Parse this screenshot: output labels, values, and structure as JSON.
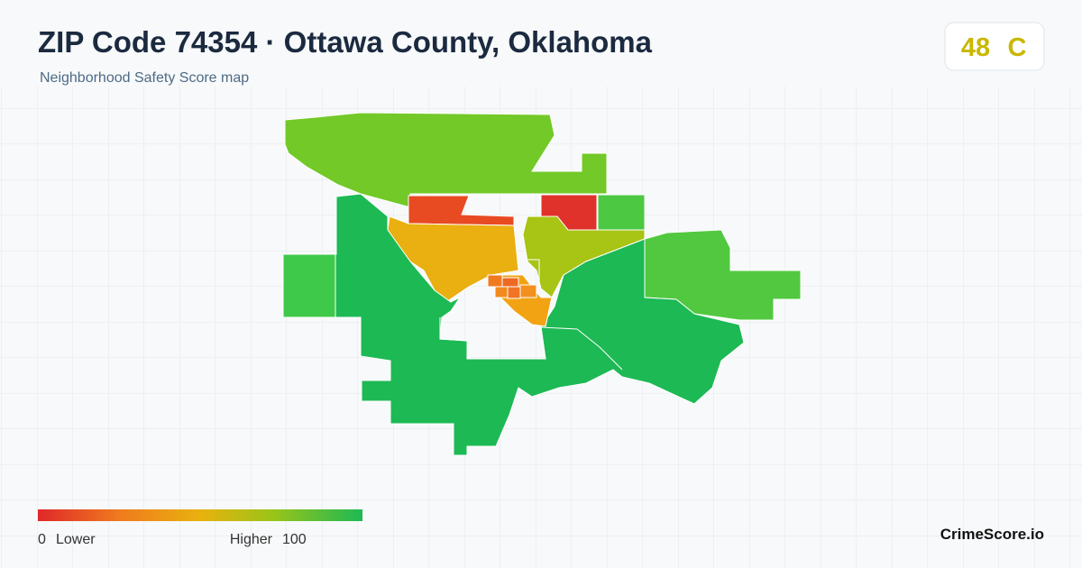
{
  "header": {
    "title": "ZIP Code 74354 · Ottawa County, Oklahoma",
    "subtitle": "Neighborhood Safety Score map"
  },
  "score": {
    "value": 48,
    "grade": "C"
  },
  "legend": {
    "min": 0,
    "min_label": "Lower",
    "max_label": "Higher",
    "max": 100
  },
  "brand": "CrimeScore.io"
}
